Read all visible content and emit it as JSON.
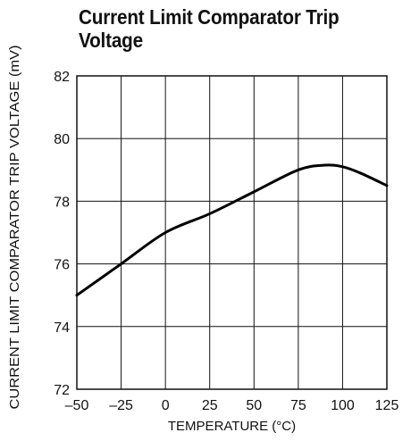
{
  "chart_data": {
    "type": "line",
    "title": "Current Limit Comparator Trip Voltage",
    "xlabel": "TEMPERATURE (°C)",
    "ylabel": "CURRENT LIMIT COMPARATOR TRIP VOLTAGE (mV)",
    "xlim": [
      -50,
      125
    ],
    "ylim": [
      72,
      82
    ],
    "xticks": [
      -50,
      -25,
      0,
      25,
      50,
      75,
      100,
      125
    ],
    "xtick_labels": [
      "–50",
      "–25",
      "0",
      "25",
      "50",
      "75",
      "100",
      "125"
    ],
    "yticks": [
      72,
      74,
      76,
      78,
      80,
      82
    ],
    "ytick_labels": [
      "72",
      "74",
      "76",
      "78",
      "80",
      "82"
    ],
    "grid": true,
    "series": [
      {
        "x": [
          -50,
          -25,
          0,
          25,
          50,
          75,
          90,
          100,
          110,
          125
        ],
        "y": [
          75.0,
          76.0,
          77.0,
          77.6,
          78.3,
          79.0,
          79.15,
          79.1,
          78.9,
          78.5
        ],
        "color": "#000000"
      }
    ]
  }
}
